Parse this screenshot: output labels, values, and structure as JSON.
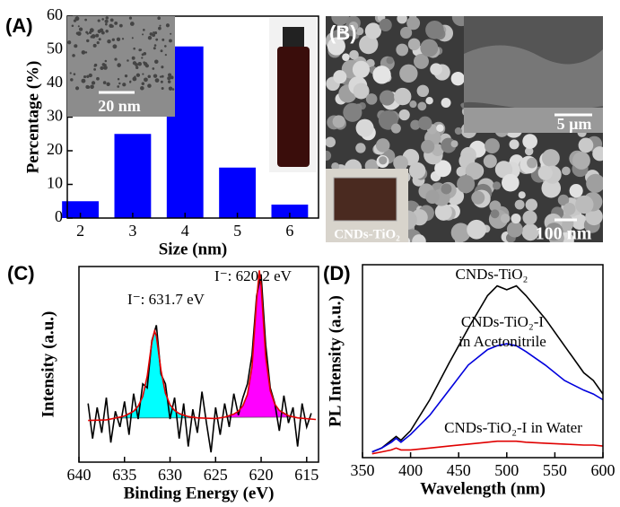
{
  "chart_data": [
    {
      "type": "bar",
      "label": "(A)",
      "x_label": "Size (nm)",
      "y_label": "Percentage (%)",
      "x": [
        2,
        3,
        4,
        5,
        6
      ],
      "values": [
        5,
        25,
        51,
        15,
        4
      ],
      "color": "#0000ff",
      "xlim": [
        1.75,
        6.55
      ],
      "xticks": [
        2,
        3,
        4,
        5,
        6
      ],
      "ylim": [
        0,
        60
      ],
      "yticks": [
        0,
        10,
        20,
        30,
        40,
        50,
        60
      ],
      "inset_scale_label": "20 nm"
    },
    {
      "type": "line",
      "label": "(C)",
      "x_label": "Binding Energy (eV)",
      "y_label": "Intensity (a.u.)",
      "xlim": [
        640,
        613.7
      ],
      "xticks": [
        640,
        635,
        630,
        625,
        620,
        615
      ],
      "ylim": [
        0,
        100
      ],
      "annotations": [
        "I⁻: 631.7 eV",
        "I⁻: 620.2 eV"
      ],
      "series": [
        {
          "color": "#00ffff",
          "area": true,
          "x": [
            636,
            635.5,
            635,
            634.5,
            634,
            633.5,
            633,
            632.5,
            632,
            631.7,
            631.5,
            631,
            630.5,
            630,
            629.5,
            629,
            628.5,
            628,
            627.5
          ],
          "values": [
            22.5,
            22.9,
            23.6,
            24.5,
            26,
            28.6,
            33.6,
            44,
            61.3,
            67,
            64.3,
            47,
            35.2,
            29.3,
            26.4,
            24.7,
            23.7,
            23.1,
            22.6
          ]
        },
        {
          "color": "#ff00ff",
          "area": true,
          "x": [
            624,
            623.5,
            623,
            622.5,
            622,
            621.5,
            621,
            620.5,
            620.2,
            620,
            619.5,
            619,
            618.5,
            618,
            617.5,
            617,
            616.5
          ],
          "values": [
            22.9,
            23.5,
            24.4,
            25.9,
            28.7,
            34.5,
            48.7,
            82.6,
            98,
            90.3,
            53.6,
            36.4,
            29.5,
            26.3,
            24.6,
            23.6,
            23
          ]
        },
        {
          "color": "#000000",
          "area": false,
          "x": [
            639,
            638.5,
            638,
            637.5,
            637,
            636.5,
            636,
            635.5,
            635,
            634.5,
            634,
            633.5,
            633,
            632.5,
            632,
            631.5,
            631,
            630.5,
            630,
            629.5,
            629,
            628.5,
            628,
            627.5,
            627,
            626.5,
            626,
            625.5,
            625,
            624.5,
            624,
            623.5,
            623,
            622.5,
            622,
            621.5,
            621,
            620.5,
            620,
            619.5,
            619,
            618.5,
            618,
            617.5,
            617,
            616.5,
            616,
            615.5,
            615,
            614.5
          ],
          "values": [
            30,
            12,
            28,
            15,
            33,
            10,
            26,
            18,
            31,
            14,
            35,
            22,
            40,
            38,
            62,
            70,
            45,
            40,
            22,
            33,
            12,
            30,
            8,
            27,
            15,
            36,
            20,
            5,
            28,
            14,
            30,
            18,
            35,
            24,
            33,
            40,
            55,
            85,
            96,
            60,
            38,
            30,
            16,
            34,
            20,
            28,
            8,
            30,
            18,
            25
          ]
        },
        {
          "color": "#e00000",
          "area": false,
          "x": [
            639,
            637,
            636,
            635,
            634,
            633.5,
            633,
            632.5,
            632,
            631.7,
            631.5,
            631,
            630.5,
            630,
            629.5,
            629,
            628,
            627,
            625,
            624,
            623,
            622.5,
            622,
            621.5,
            621,
            620.5,
            620.2,
            620,
            619.5,
            619,
            618.5,
            618,
            617,
            616,
            614
          ],
          "values": [
            21.3,
            21.6,
            22.5,
            23.6,
            26,
            28.6,
            33.6,
            44,
            61.3,
            67,
            64.3,
            47,
            35.2,
            29.3,
            26.4,
            24.8,
            23.3,
            22.6,
            22.3,
            23,
            24.6,
            26,
            28.8,
            34.6,
            48.8,
            82.7,
            98,
            90.4,
            53.7,
            36.5,
            29.6,
            26.4,
            23.7,
            22.6,
            21.8
          ]
        }
      ]
    },
    {
      "type": "line",
      "label": "(D)",
      "x_label": "Wavelength (nm)",
      "y_label": "PL Intensity (a.u.)",
      "xlim": [
        350,
        600
      ],
      "xticks": [
        350,
        400,
        450,
        500,
        550,
        600
      ],
      "ylim": [
        0,
        100
      ],
      "annotations": [
        "CNDs-TiO₂",
        "CNDs-TiO₂-I",
        "in Acetonitrile",
        "CNDs-TiO₂-I in Water"
      ],
      "series": [
        {
          "color": "#000000",
          "area": false,
          "x": [
            360,
            370,
            380,
            385,
            390,
            400,
            420,
            440,
            460,
            480,
            490,
            500,
            510,
            520,
            540,
            560,
            580,
            590,
            600
          ],
          "values": [
            3,
            5,
            9,
            11,
            9,
            14,
            30,
            49,
            67,
            84,
            89,
            87,
            89,
            84,
            72,
            58,
            44,
            40,
            33
          ]
        },
        {
          "color": "#0000dd",
          "area": false,
          "x": [
            360,
            370,
            380,
            385,
            390,
            400,
            420,
            440,
            460,
            480,
            490,
            500,
            510,
            520,
            540,
            560,
            580,
            590,
            600
          ],
          "values": [
            3,
            5,
            8,
            10,
            8,
            12,
            22,
            35,
            48,
            56,
            58,
            59,
            58,
            55,
            48,
            40,
            35,
            33,
            30
          ]
        },
        {
          "color": "#e00000",
          "area": false,
          "x": [
            360,
            370,
            380,
            385,
            390,
            400,
            420,
            440,
            460,
            480,
            490,
            500,
            510,
            520,
            540,
            560,
            580,
            590,
            600
          ],
          "values": [
            2,
            3,
            4,
            5,
            4,
            4,
            5,
            6,
            7,
            8,
            8.5,
            8.5,
            8.5,
            8,
            7.5,
            7,
            6.5,
            6.5,
            6
          ]
        }
      ]
    }
  ],
  "image_panel": {
    "label": "(B)",
    "inset_scale_label": "5 µm",
    "inset_caption": "CNDs-TiO₂",
    "scale_label": "100 nm"
  }
}
